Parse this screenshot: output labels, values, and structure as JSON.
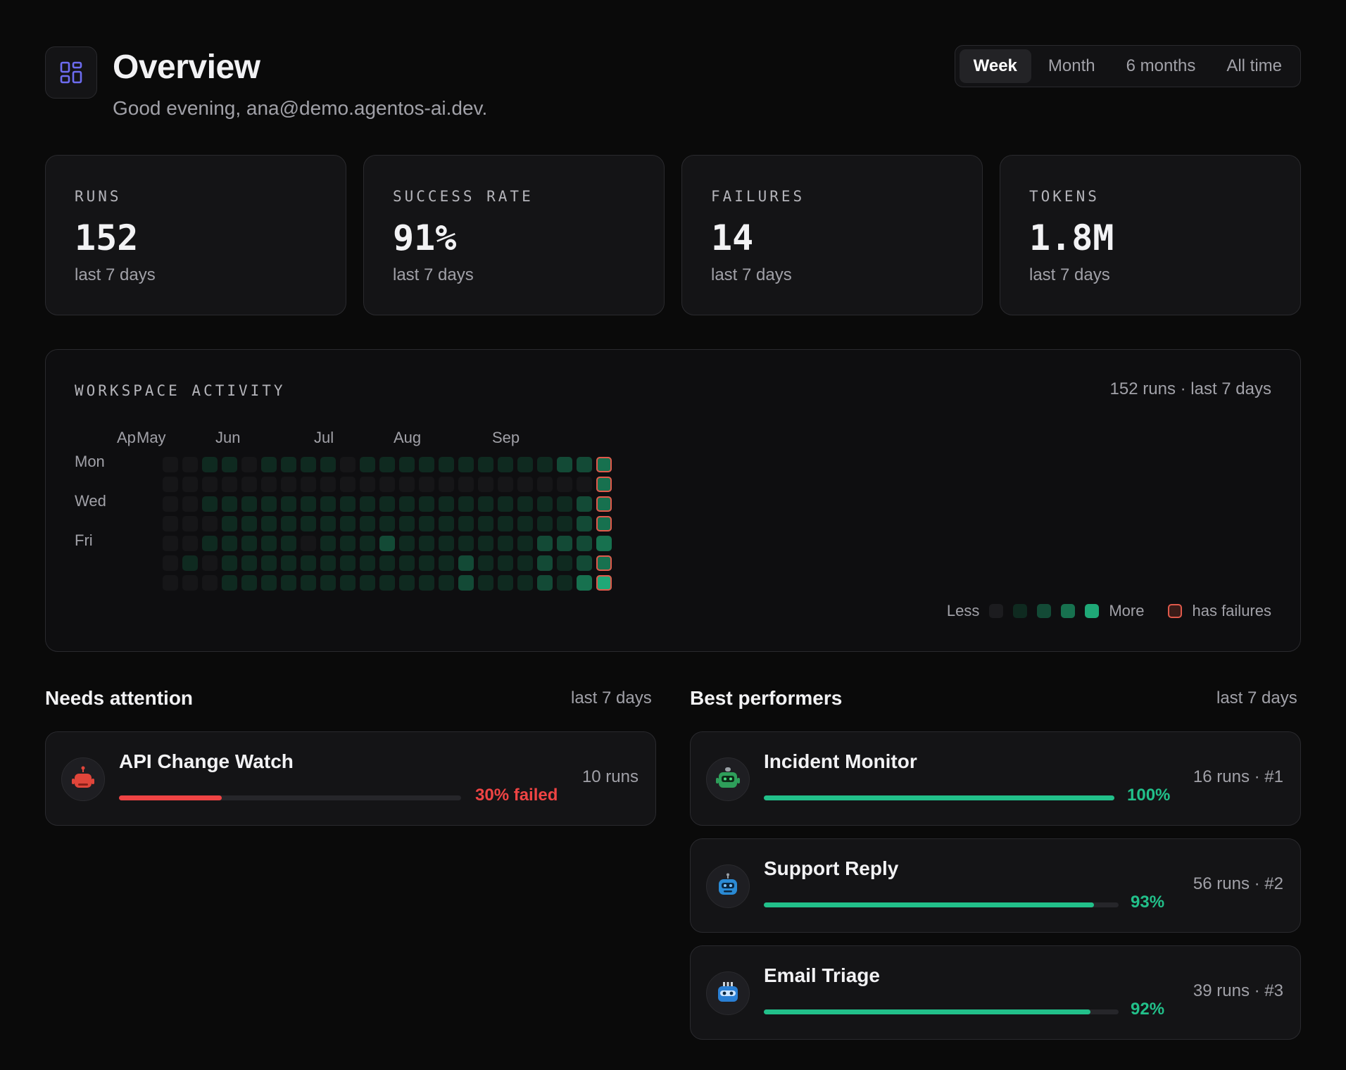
{
  "header": {
    "title": "Overview",
    "subtitle": "Good evening, ana@demo.agentos-ai.dev.",
    "icon": "dashboard-grid-icon",
    "ranges": [
      {
        "label": "Week",
        "active": true
      },
      {
        "label": "Month",
        "active": false
      },
      {
        "label": "6 months",
        "active": false
      },
      {
        "label": "All time",
        "active": false
      }
    ]
  },
  "stats": [
    {
      "label": "RUNS",
      "value": "152",
      "sub": "last 7 days"
    },
    {
      "label": "SUCCESS RATE",
      "value": "91%",
      "sub": "last 7 days"
    },
    {
      "label": "FAILURES",
      "value": "14",
      "sub": "last 7 days"
    },
    {
      "label": "TOKENS",
      "value": "1.8M",
      "sub": "last 7 days"
    }
  ],
  "activity": {
    "title": "WORKSPACE ACTIVITY",
    "summary": "152 runs · last 7 days",
    "months": [
      "Ap",
      "May",
      "Jun",
      "Jul",
      "Aug",
      "Sep"
    ],
    "days": [
      "Mon",
      "Wed",
      "Fri"
    ],
    "legend": {
      "less": "Less",
      "more": "More",
      "failures": "has failures"
    },
    "colors": [
      "#161618",
      "#0f2a20",
      "#134a36",
      "#17714f",
      "#1fa877"
    ],
    "grid": [
      [
        0,
        0,
        1,
        1,
        0,
        1,
        1,
        1,
        1,
        0,
        1,
        1,
        1,
        1,
        1,
        1,
        1,
        1,
        1,
        1,
        2,
        2,
        3
      ],
      [
        0,
        0,
        0,
        0,
        0,
        0,
        0,
        0,
        0,
        0,
        0,
        0,
        0,
        0,
        0,
        0,
        0,
        0,
        0,
        0,
        0,
        0,
        3
      ],
      [
        0,
        0,
        1,
        1,
        1,
        1,
        1,
        1,
        1,
        1,
        1,
        1,
        1,
        1,
        1,
        1,
        1,
        1,
        1,
        1,
        1,
        2,
        3
      ],
      [
        0,
        0,
        0,
        1,
        1,
        1,
        1,
        1,
        1,
        1,
        1,
        1,
        1,
        1,
        1,
        1,
        1,
        1,
        1,
        1,
        1,
        2,
        3
      ],
      [
        0,
        0,
        1,
        1,
        1,
        1,
        1,
        0,
        1,
        1,
        1,
        2,
        1,
        1,
        1,
        1,
        1,
        1,
        1,
        2,
        2,
        2,
        3
      ],
      [
        0,
        1,
        0,
        1,
        1,
        1,
        1,
        1,
        1,
        1,
        1,
        1,
        1,
        1,
        1,
        2,
        1,
        1,
        1,
        2,
        1,
        2,
        3
      ],
      [
        0,
        0,
        0,
        1,
        1,
        1,
        1,
        1,
        1,
        1,
        1,
        1,
        1,
        1,
        1,
        2,
        1,
        1,
        1,
        2,
        1,
        3,
        4
      ]
    ],
    "failure_cells": [
      [
        0,
        22
      ],
      [
        1,
        22
      ],
      [
        2,
        22
      ],
      [
        3,
        22
      ],
      [
        5,
        22
      ],
      [
        6,
        22
      ]
    ]
  },
  "needs_attention": {
    "title": "Needs attention",
    "period": "last 7 days",
    "items": [
      {
        "name": "API Change Watch",
        "pct_label": "30% failed",
        "fraction": 0.3,
        "runs": "10 runs",
        "color": "#ef4444",
        "avatar": "red-robot-icon"
      }
    ]
  },
  "best_performers": {
    "title": "Best performers",
    "period": "last 7 days",
    "items": [
      {
        "name": "Incident Monitor",
        "pct_label": "100%",
        "fraction": 1.0,
        "runs": "16 runs · #1",
        "color": "#22c08a",
        "avatar": "green-robot-icon"
      },
      {
        "name": "Support Reply",
        "pct_label": "93%",
        "fraction": 0.93,
        "runs": "56 runs · #2",
        "color": "#22c08a",
        "avatar": "blue-robot-icon"
      },
      {
        "name": "Email Triage",
        "pct_label": "92%",
        "fraction": 0.92,
        "runs": "39 runs · #3",
        "color": "#22c08a",
        "avatar": "blue-robot-visor-icon"
      }
    ]
  }
}
